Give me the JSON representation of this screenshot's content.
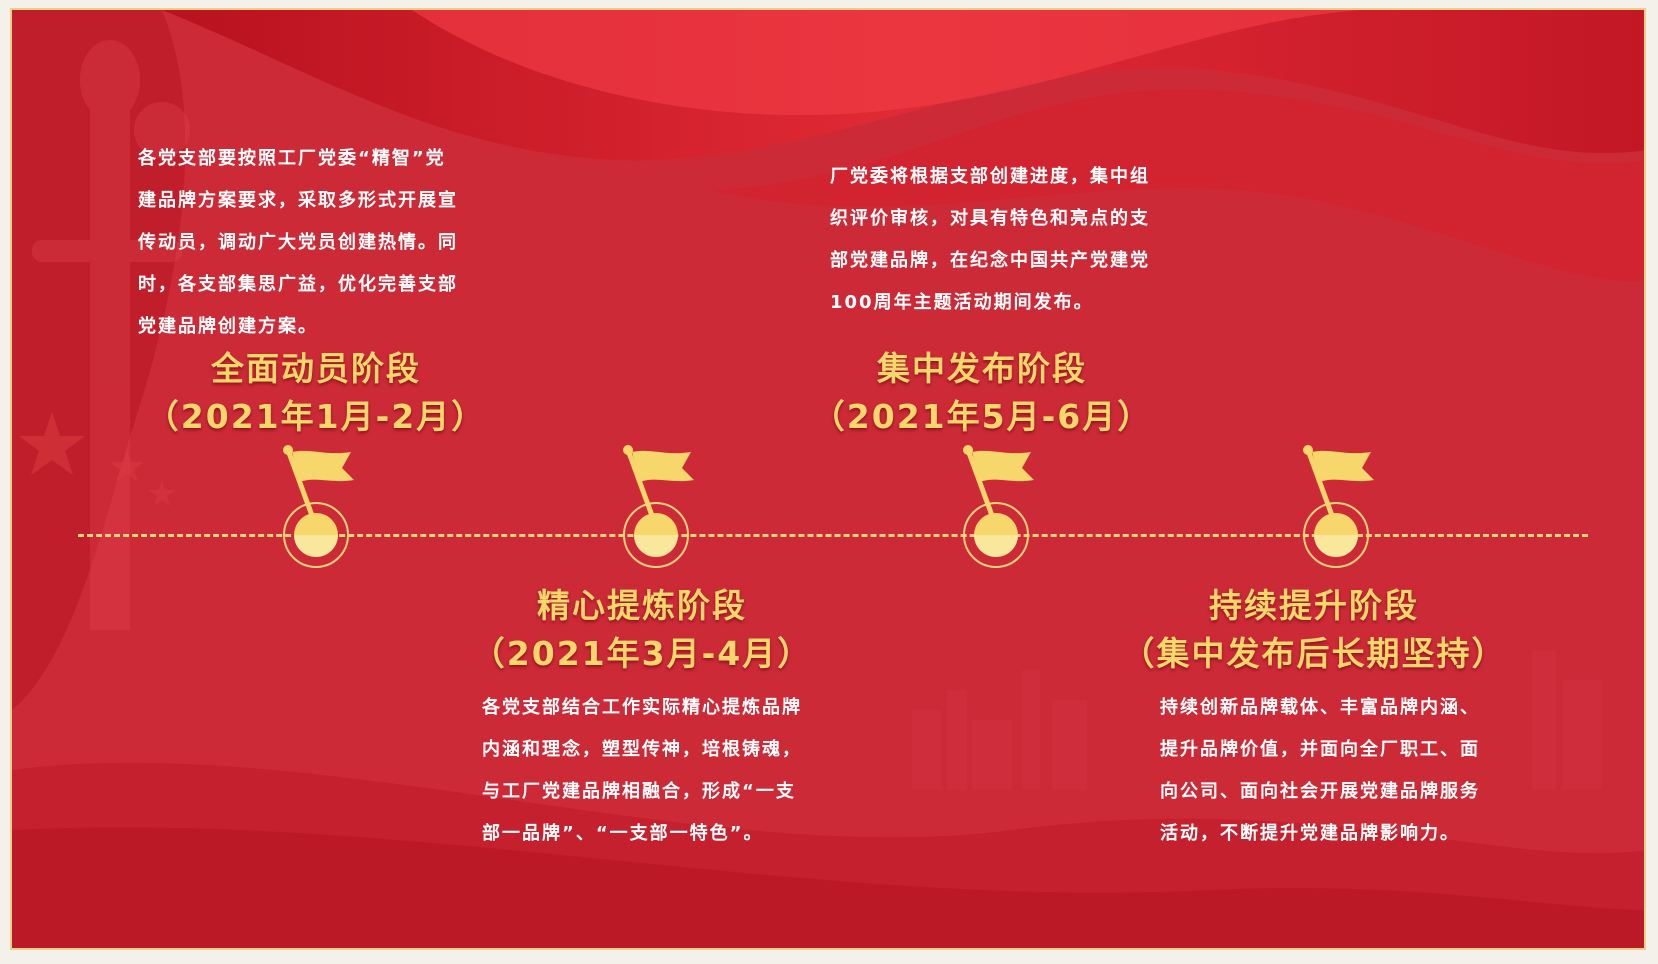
{
  "colors": {
    "background": "#c81f2e",
    "gold": "#f7d66b",
    "text": "#ffffff",
    "frame": "#e8cf8a"
  },
  "stages": [
    {
      "title": "全面动员阶段",
      "period": "（2021年1月-2月）",
      "description": [
        "各党支部要按照工厂党委“精智”党",
        "建品牌方案要求，采取多形式开展宣",
        "传动员，调动广大党员创建热情。同",
        "时，各支部集思广益，优化完善支部",
        "党建品牌创建方案。"
      ]
    },
    {
      "title": "精心提炼阶段",
      "period": "（2021年3月-4月）",
      "description": [
        "各党支部结合工作实际精心提炼品牌",
        "内涵和理念，塑型传神，培根铸魂，",
        "与工厂党建品牌相融合，形成“一支",
        "部一品牌”、“一支部一特色”。"
      ]
    },
    {
      "title": "集中发布阶段",
      "period": "（2021年5月-6月）",
      "description": [
        "厂党委将根据支部创建进度，集中组",
        "织评价审核，对具有特色和亮点的支",
        "部党建品牌，在纪念中国共产党建党",
        "100周年主题活动期间发布。"
      ]
    },
    {
      "title": "持续提升阶段",
      "period": "（集中发布后长期坚持）",
      "description": [
        "持续创新品牌载体、丰富品牌内涵、",
        "提升品牌价值，并面向全厂职工、面",
        "向公司、面向社会开展党建品牌服务",
        "活动，不断提升党建品牌影响力。"
      ]
    }
  ]
}
